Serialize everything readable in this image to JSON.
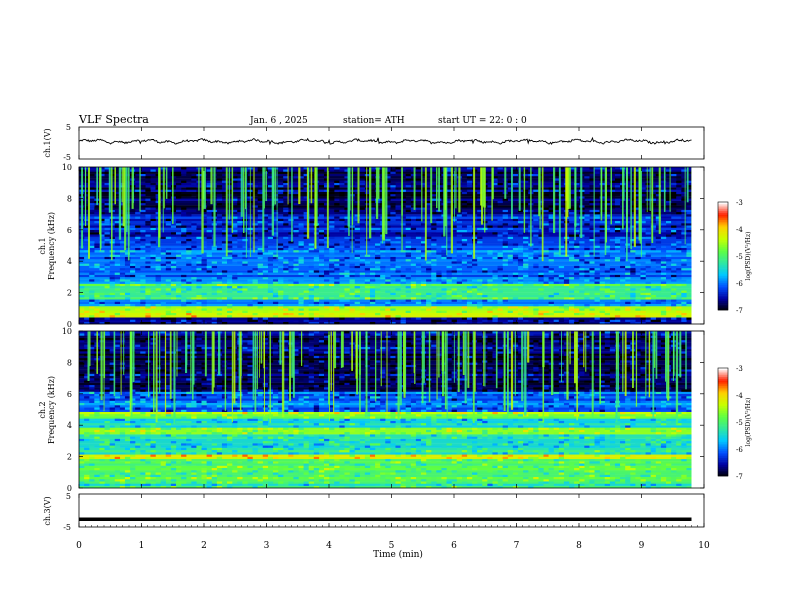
{
  "header": {
    "title": "VLF  Spectra",
    "date": "Jan.  6   , 2025",
    "station": "station= ATH",
    "start": "start  UT  =    22: 0   : 0"
  },
  "chart_data": [
    {
      "type": "line",
      "panel": "ch1-waveform",
      "ylabel": "ch.1(V)",
      "ylim": [
        -5,
        5
      ],
      "yticks": [
        "5",
        "-5"
      ],
      "xlim": [
        0,
        10
      ],
      "series": [
        {
          "values": "noisy waveform centred near 0.5 V, amplitude about 0.5 V"
        }
      ]
    },
    {
      "type": "heatmap",
      "panel": "ch1-spectrogram",
      "ylabel": "ch.1\nFrequency  (kHz)",
      "ylim": [
        0,
        10
      ],
      "yticks": [
        "0",
        "2",
        "4",
        "6",
        "8",
        "10"
      ],
      "xlim": [
        0,
        10
      ],
      "colorbar": {
        "label": "log(PSD)(V²/Hz)",
        "range": [
          -7,
          -3
        ],
        "ticks": [
          "-3",
          "-4",
          "-5",
          "-6",
          "-7"
        ]
      },
      "bands_khz": [
        {
          "from": 0,
          "to": 0.4,
          "level": -6.5
        },
        {
          "from": 0.4,
          "to": 1.2,
          "level": -4.3
        },
        {
          "from": 1.2,
          "to": 1.6,
          "level": -5.8
        },
        {
          "from": 1.6,
          "to": 2.6,
          "level": -5.0
        },
        {
          "from": 2.6,
          "to": 3.6,
          "level": -6.0
        },
        {
          "from": 3.6,
          "to": 5.2,
          "level": -6.0
        },
        {
          "from": 5.2,
          "to": 7.0,
          "level": -6.3
        },
        {
          "from": 7.0,
          "to": 10,
          "level": -6.7
        }
      ]
    },
    {
      "type": "heatmap",
      "panel": "ch2-spectrogram",
      "ylabel": "ch.2\nFrequency  (kHz)",
      "ylim": [
        0,
        10
      ],
      "yticks": [
        "0",
        "2",
        "4",
        "6",
        "8",
        "10"
      ],
      "xlim": [
        0,
        10
      ],
      "colorbar": {
        "label": "log(PSD)(V²/Hz)",
        "range": [
          -7,
          -3
        ],
        "ticks": [
          "-3",
          "-4",
          "-5",
          "-6",
          "-7"
        ]
      },
      "bands_khz": [
        {
          "from": 0,
          "to": 0.5,
          "level": -5.2
        },
        {
          "from": 0.5,
          "to": 1.8,
          "level": -5.0
        },
        {
          "from": 1.8,
          "to": 2.2,
          "level": -4.0
        },
        {
          "from": 2.2,
          "to": 3.4,
          "level": -5.3
        },
        {
          "from": 3.4,
          "to": 3.8,
          "level": -4.6
        },
        {
          "from": 3.8,
          "to": 4.4,
          "level": -5.4
        },
        {
          "from": 4.4,
          "to": 4.8,
          "level": -4.6
        },
        {
          "from": 4.8,
          "to": 6.2,
          "level": -6.0
        },
        {
          "from": 6.2,
          "to": 10,
          "level": -6.7
        }
      ]
    },
    {
      "type": "line",
      "panel": "ch3-waveform",
      "ylabel": "ch.3(V)",
      "ylim": [
        -5,
        5
      ],
      "yticks": [
        "5",
        "-5"
      ],
      "xlim": [
        0,
        10
      ],
      "xlabel": "Time  (min)",
      "xticks": [
        "0",
        "1",
        "2",
        "3",
        "4",
        "5",
        "6",
        "7",
        "8",
        "9",
        "10"
      ],
      "series": [
        {
          "values": "flat line at about -2.5 V"
        }
      ]
    }
  ],
  "colors": {
    "scale": [
      "#000000",
      "#0000a0",
      "#0050ff",
      "#00c8ff",
      "#30e8a0",
      "#60ff40",
      "#c8ff00",
      "#ffd000",
      "#ff2000",
      "#ffffff"
    ]
  }
}
